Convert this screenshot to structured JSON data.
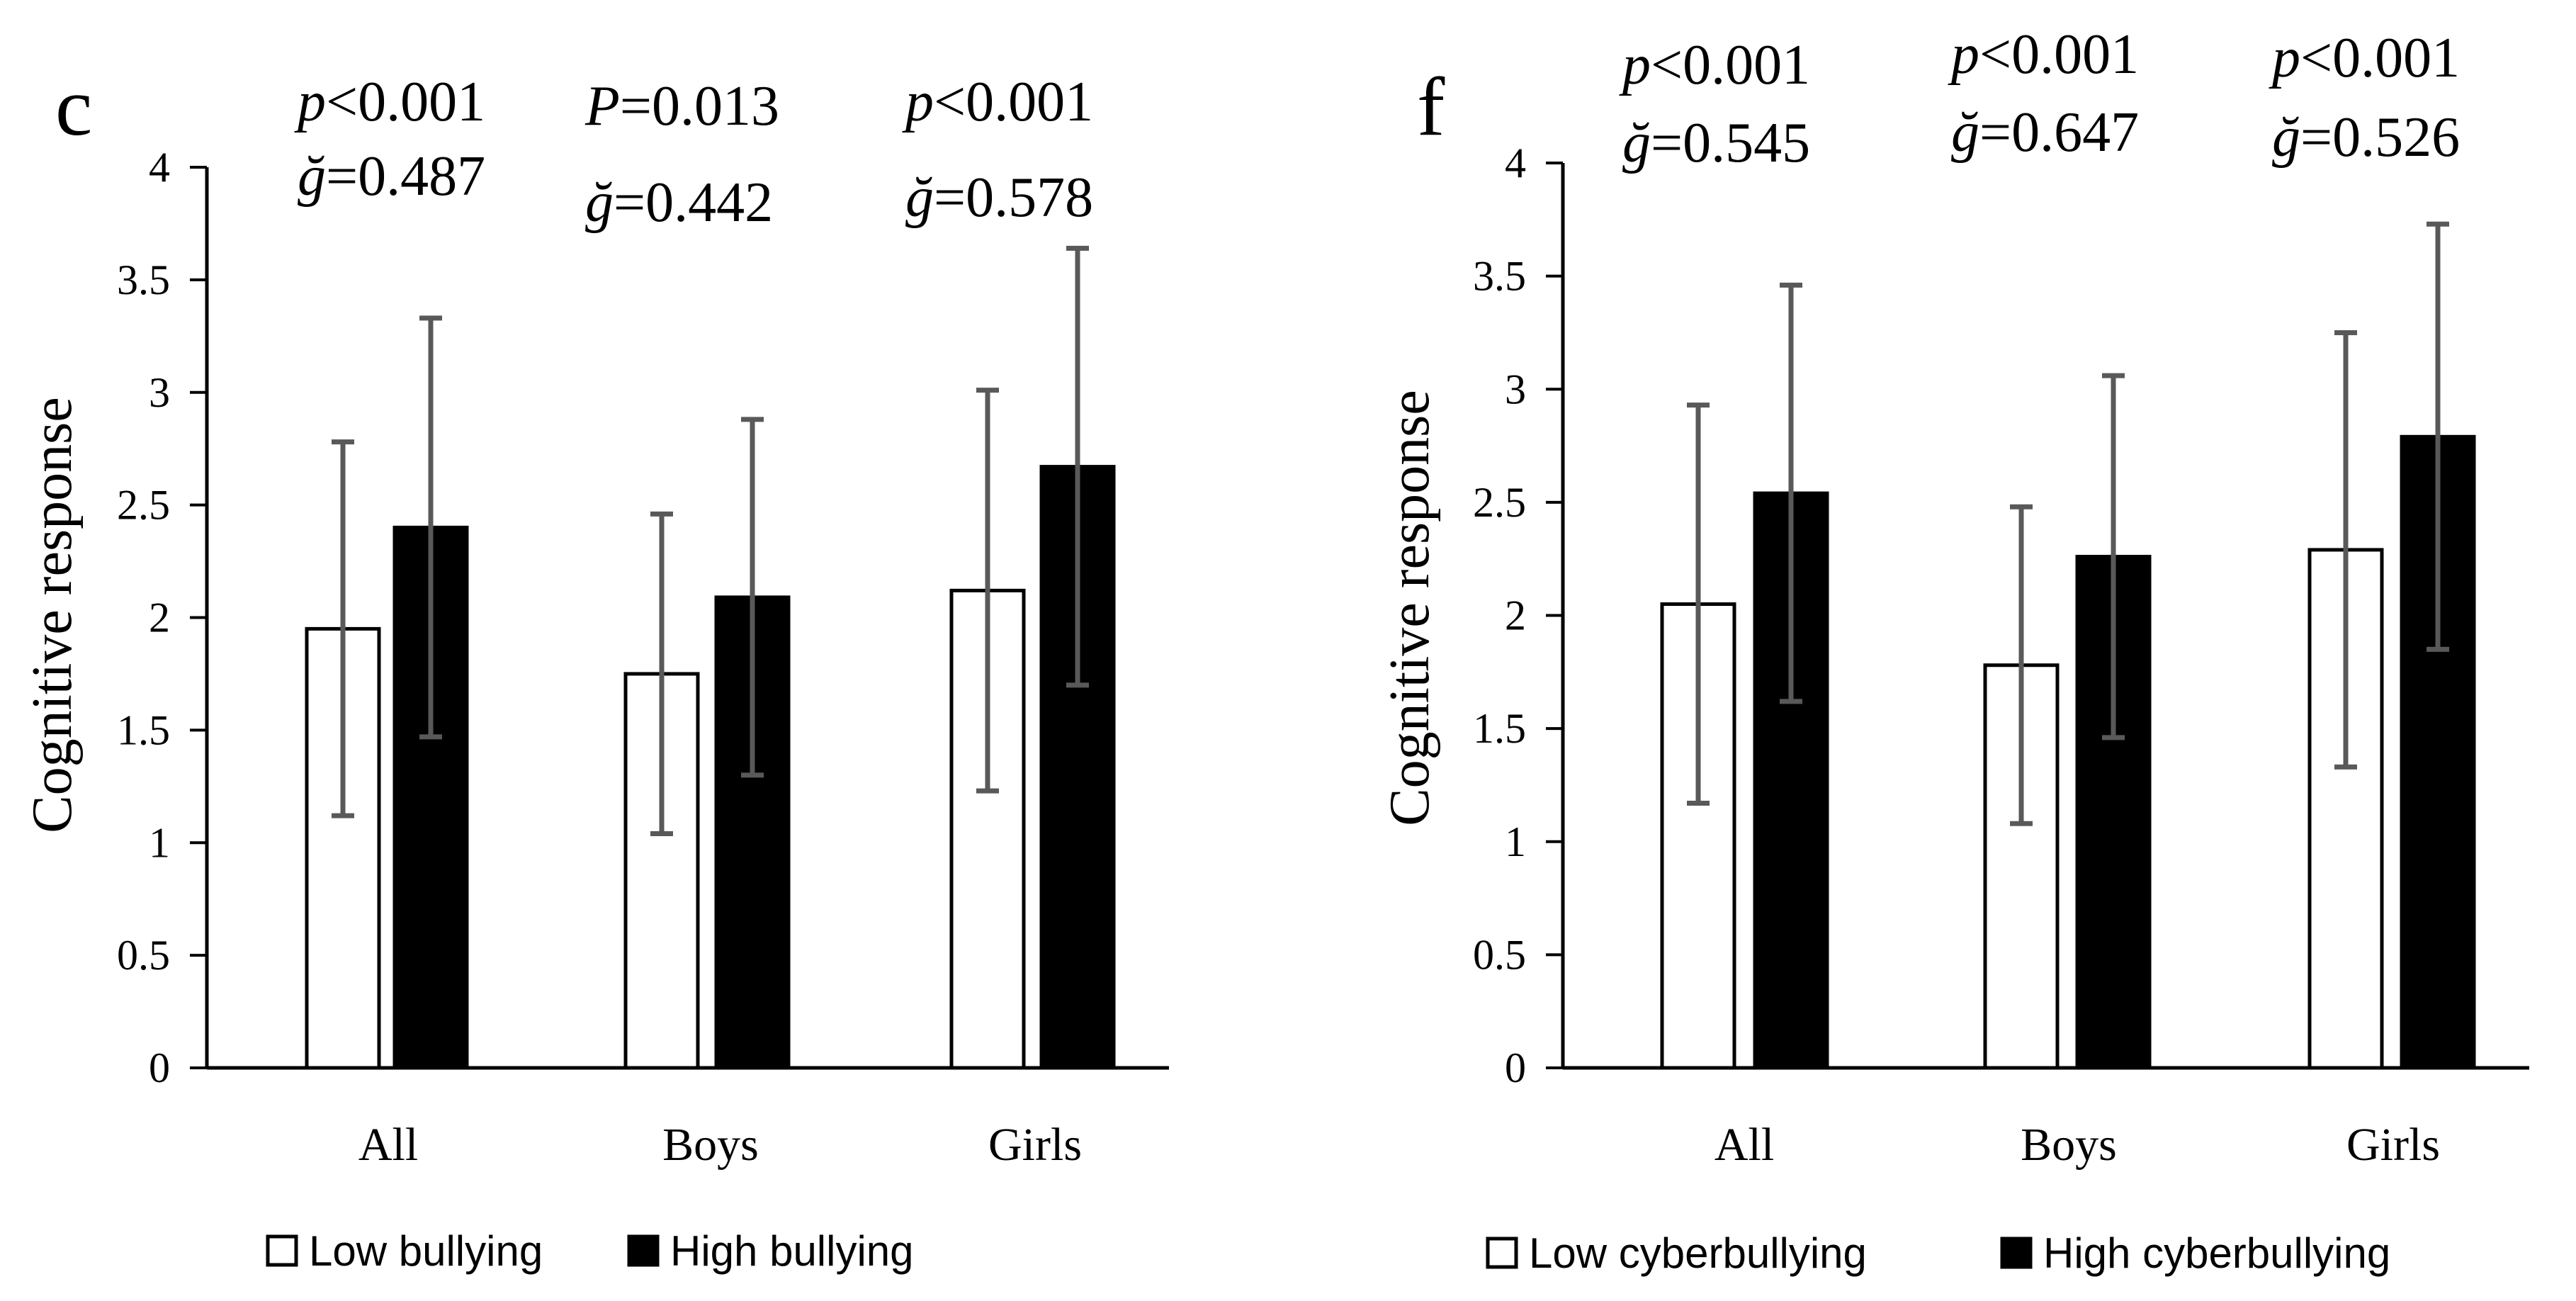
{
  "chart_data": [
    {
      "type": "bar",
      "panel_label": "c",
      "ylabel": "Cognitive response",
      "xlabel": "",
      "ylim": [
        0,
        4
      ],
      "yticks": [
        "0",
        "0.5",
        "1",
        "1.5",
        "2",
        "2.5",
        "3",
        "3.5",
        "4"
      ],
      "categories": [
        "All",
        "Boys",
        "Girls"
      ],
      "series": [
        {
          "name": "Low bullying",
          "values": [
            1.95,
            1.75,
            2.12
          ],
          "errors": [
            0.83,
            0.71,
            0.89
          ],
          "color": "#ffffff"
        },
        {
          "name": "High bullying",
          "values": [
            2.4,
            2.09,
            2.67
          ],
          "errors": [
            0.93,
            0.79,
            0.97
          ],
          "color": "#000000"
        }
      ],
      "annotations": [
        {
          "p_sym": "p",
          "p_rest": "<0.001",
          "g_sym": "ğ",
          "g_rest": "=0.487"
        },
        {
          "p_sym": "P",
          "p_rest": "=0.013",
          "g_sym": "ğ",
          "g_rest": "=0.442"
        },
        {
          "p_sym": "p",
          "p_rest": "<0.001",
          "g_sym": "ğ",
          "g_rest": "=0.578"
        }
      ],
      "legend": {
        "position": "bottom",
        "entries": [
          "Low bullying",
          "High bullying"
        ]
      }
    },
    {
      "type": "bar",
      "panel_label": "f",
      "ylabel": "Cognitive response",
      "xlabel": "",
      "ylim": [
        0,
        4
      ],
      "yticks": [
        "0",
        "0.5",
        "1",
        "1.5",
        "2",
        "2.5",
        "3",
        "3.5",
        "4"
      ],
      "categories": [
        "All",
        "Boys",
        "Girls"
      ],
      "series": [
        {
          "name": "Low cyberbullying",
          "values": [
            2.05,
            1.78,
            2.29
          ],
          "errors": [
            0.88,
            0.7,
            0.96
          ],
          "color": "#ffffff"
        },
        {
          "name": "High cyberbullying",
          "values": [
            2.54,
            2.26,
            2.79
          ],
          "errors": [
            0.92,
            0.8,
            0.94
          ],
          "color": "#000000"
        }
      ],
      "annotations": [
        {
          "p_sym": "p",
          "p_rest": "<0.001",
          "g_sym": "ğ",
          "g_rest": "=0.545"
        },
        {
          "p_sym": "p",
          "p_rest": "<0.001",
          "g_sym": "ğ",
          "g_rest": "=0.647"
        },
        {
          "p_sym": "p",
          "p_rest": "<0.001",
          "g_sym": "ğ",
          "g_rest": "=0.526"
        }
      ],
      "legend": {
        "position": "bottom",
        "entries": [
          "Low cyberbullying",
          "High cyberbullying"
        ]
      }
    }
  ]
}
